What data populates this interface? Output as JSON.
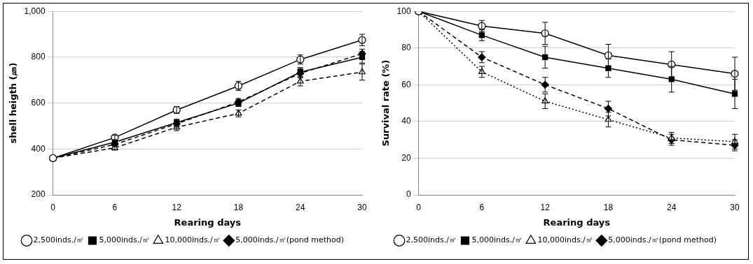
{
  "chart_data": [
    {
      "type": "line",
      "x_label": "Rearing days",
      "y_label": "shell heigth (㎛)",
      "categories": [
        "0",
        "6",
        "12",
        "18",
        "24",
        "30"
      ],
      "ylim": [
        200,
        1000
      ],
      "yticks": [
        200,
        400,
        600,
        800,
        1000
      ],
      "grid": true,
      "legend": "bottom",
      "series": [
        {
          "name": "2,500inds./㎡",
          "color": "#000000",
          "marker": "circle-open",
          "line_style": "solid",
          "values": [
            360,
            450,
            570,
            675,
            790,
            875
          ],
          "errors": [
            0,
            10,
            15,
            20,
            20,
            25
          ]
        },
        {
          "name": "5,000inds./㎡",
          "color": "#000000",
          "marker": "square",
          "line_style": "solid",
          "values": [
            360,
            430,
            515,
            600,
            735,
            800
          ],
          "errors": [
            0,
            10,
            15,
            15,
            20,
            25
          ]
        },
        {
          "name": "10,000inds./㎡",
          "color": "#000000",
          "marker": "triangle-open",
          "line_style": "dashed",
          "values": [
            360,
            405,
            495,
            555,
            695,
            735
          ],
          "errors": [
            0,
            10,
            15,
            15,
            20,
            35
          ]
        },
        {
          "name": "5,000inds./㎡(pond method)",
          "color": "#000000",
          "marker": "diamond",
          "line_style": "dashed",
          "values": [
            360,
            420,
            510,
            605,
            730,
            815
          ],
          "errors": [
            0,
            10,
            15,
            15,
            20,
            20
          ]
        }
      ]
    },
    {
      "type": "line",
      "x_label": "Rearing days",
      "y_label": "Survival rate (%)",
      "categories": [
        "0",
        "6",
        "12",
        "18",
        "24",
        "30"
      ],
      "ylim": [
        0,
        100
      ],
      "yticks": [
        0,
        20,
        40,
        60,
        80,
        100
      ],
      "grid": true,
      "legend": "bottom",
      "series": [
        {
          "name": "2,500inds./㎡",
          "color": "#000000",
          "marker": "circle-open",
          "line_style": "solid",
          "values": [
            100,
            92,
            88,
            76,
            71,
            66
          ],
          "errors": [
            0,
            3,
            6,
            6,
            7,
            9
          ]
        },
        {
          "name": "5,000inds./㎡",
          "color": "#000000",
          "marker": "square",
          "line_style": "solid",
          "values": [
            100,
            87,
            75,
            69,
            63,
            55
          ],
          "errors": [
            0,
            3,
            6,
            5,
            7,
            8
          ]
        },
        {
          "name": "10,000inds./㎡",
          "color": "#000000",
          "marker": "triangle-open",
          "line_style": "dotted",
          "values": [
            100,
            67,
            51,
            41,
            31,
            29
          ],
          "errors": [
            0,
            3,
            4,
            4,
            3,
            4
          ]
        },
        {
          "name": "5,000inds./㎡(pond method)",
          "color": "#000000",
          "marker": "diamond",
          "line_style": "dashed",
          "values": [
            100,
            75,
            60,
            47,
            30,
            27
          ],
          "errors": [
            0,
            3,
            4,
            4,
            3,
            3
          ]
        }
      ]
    }
  ]
}
